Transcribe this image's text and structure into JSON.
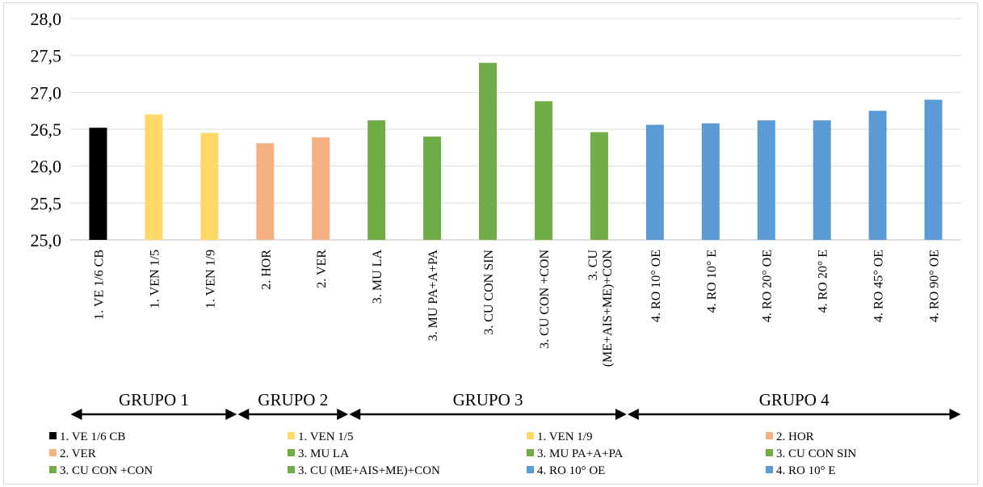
{
  "chart_data": {
    "type": "bar",
    "categories": [
      "1. VE 1/6 CB",
      "1. VEN 1/5",
      "1. VEN 1/9",
      "2.  HOR",
      "2. VER",
      "3. MU LA",
      "3. MU PA+A+PA",
      "3. CU CON SIN",
      "3. CU CON +CON",
      "3. CU (ME+AIS+ME)+CON",
      "4. RO 10° OE",
      "4. RO 10° E",
      "4. RO 20° OE",
      "4. RO 20° E",
      "4. RO 45° OE",
      "4. RO 90° OE"
    ],
    "category_tick_lines": [
      [
        "1. VE 1/6 CB"
      ],
      [
        "1. VEN 1/5"
      ],
      [
        "1. VEN 1/9"
      ],
      [
        "2.  HOR"
      ],
      [
        "2. VER"
      ],
      [
        "3. MU LA"
      ],
      [
        "3. MU PA+A+PA"
      ],
      [
        "3. CU CON SIN"
      ],
      [
        "3. CU CON +CON"
      ],
      [
        "3. CU",
        "(ME+AIS+ME)+CON"
      ],
      [
        "4. RO 10° OE"
      ],
      [
        "4. RO 10° E"
      ],
      [
        "4. RO 20° OE"
      ],
      [
        "4. RO 20° E"
      ],
      [
        "4. RO 45° OE"
      ],
      [
        "4. RO 90° OE"
      ]
    ],
    "values": [
      26.52,
      26.7,
      26.45,
      26.31,
      26.39,
      26.62,
      26.4,
      27.4,
      26.88,
      26.46,
      26.56,
      26.58,
      26.62,
      26.62,
      26.75,
      26.9
    ],
    "colors": [
      "#000000",
      "#ffd966",
      "#ffd966",
      "#f4b183",
      "#f4b183",
      "#70ad47",
      "#70ad47",
      "#70ad47",
      "#70ad47",
      "#70ad47",
      "#5b9bd5",
      "#5b9bd5",
      "#5b9bd5",
      "#5b9bd5",
      "#5b9bd5",
      "#5b9bd5"
    ],
    "ylim": [
      25.0,
      28.0
    ],
    "yticks": [
      "25,0",
      "25,5",
      "26,0",
      "26,5",
      "27,0",
      "27,5",
      "28,0"
    ],
    "grid": true,
    "groups": [
      {
        "label": "GRUPO 1",
        "first": 0,
        "last": 2
      },
      {
        "label": "GRUPO 2",
        "first": 3,
        "last": 4
      },
      {
        "label": "GRUPO 3",
        "first": 5,
        "last": 9
      },
      {
        "label": "GRUPO 4",
        "first": 10,
        "last": 15
      }
    ],
    "legend": {
      "position": "bottom",
      "entries": [
        {
          "label": "1. VE 1/6 CB",
          "color": "#000000"
        },
        {
          "label": "1. VEN 1/5",
          "color": "#ffd966"
        },
        {
          "label": "1. VEN 1/9",
          "color": "#ffd966"
        },
        {
          "label": "2.  HOR",
          "color": "#f4b183"
        },
        {
          "label": "2. VER",
          "color": "#f4b183"
        },
        {
          "label": "3. MU LA",
          "color": "#70ad47"
        },
        {
          "label": "3. MU PA+A+PA",
          "color": "#70ad47"
        },
        {
          "label": "3. CU CON SIN",
          "color": "#70ad47"
        },
        {
          "label": "3. CU CON +CON",
          "color": "#70ad47"
        },
        {
          "label": "3. CU (ME+AIS+ME)+CON",
          "color": "#70ad47"
        },
        {
          "label": "4. RO 10° OE",
          "color": "#5b9bd5"
        },
        {
          "label": "4. RO 10° E",
          "color": "#5b9bd5"
        }
      ]
    }
  }
}
